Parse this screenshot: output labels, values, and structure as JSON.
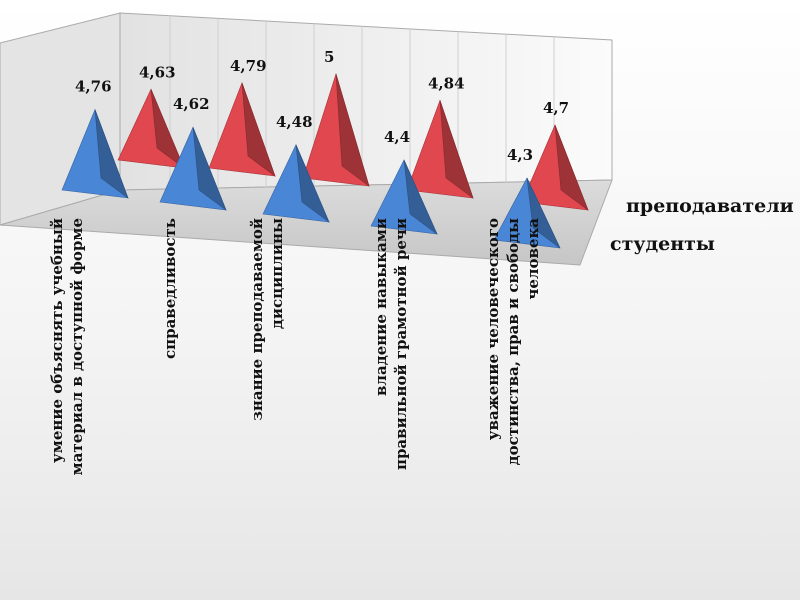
{
  "chart_data": {
    "type": "3d-pyramid-bar",
    "categories": [
      [
        "умение объяснять учебный",
        "материал в доступной форме"
      ],
      [
        "справедливость"
      ],
      [
        "знание преподаваемой",
        "дисциплины"
      ],
      [
        "владение навыками",
        "правильной грамотной речи"
      ],
      [
        "уважение человеческого",
        "достинства, прав и свободы",
        "человека"
      ]
    ],
    "series": [
      {
        "name": "студенты",
        "values": [
          4.76,
          4.62,
          4.48,
          4.4,
          4.3
        ],
        "value_labels": [
          "4,76",
          "4,62",
          "4,48",
          "4,4",
          "4,3"
        ],
        "color": "#4a86d6"
      },
      {
        "name": "преподаватели",
        "values": [
          4.63,
          4.79,
          5,
          4.84,
          4.7
        ],
        "value_labels": [
          "4,63",
          "4,79",
          "5",
          "4,84",
          "4,7"
        ],
        "color": "#e0474e"
      }
    ],
    "ylim": [
      0,
      5
    ],
    "grid": true
  }
}
